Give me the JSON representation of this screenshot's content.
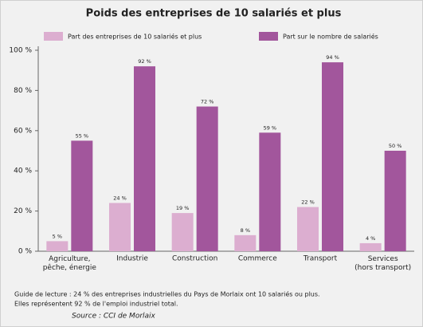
{
  "chart_data": {
    "type": "bar",
    "title": "Poids des entreprises de 10 salariés et plus",
    "categories": [
      "Agriculture,\npêche, énergie",
      "Industrie",
      "Construction",
      "Commerce",
      "Transport",
      "Services\n(hors transport)"
    ],
    "series": [
      {
        "name": "Part des entreprises de 10 salariés et plus",
        "color": "#dcaed0",
        "values": [
          5,
          24,
          19,
          8,
          22,
          4
        ],
        "value_labels": [
          "5 %",
          "24 %",
          "19 %",
          "8 %",
          "22 %",
          "4 %"
        ]
      },
      {
        "name": "Part sur le nombre de salariés",
        "color": "#a2569c",
        "values": [
          55,
          92,
          72,
          59,
          94,
          50
        ],
        "value_labels": [
          "55 %",
          "92 %",
          "72 %",
          "59 %",
          "94 %",
          "50 %"
        ]
      }
    ],
    "ylim": [
      0,
      100
    ],
    "yticks": [
      {
        "value": 0,
        "label": "0 %"
      },
      {
        "value": 20,
        "label": "20 %"
      },
      {
        "value": 40,
        "label": "40 %"
      },
      {
        "value": 60,
        "label": "60 %"
      },
      {
        "value": 80,
        "label": "80 %"
      },
      {
        "value": 100,
        "label": "100 %"
      }
    ],
    "grid": false,
    "annotations": [
      "Guide de lecture : 24 % des entreprises industrielles du Pays de Morlaix ont 10 salariés ou plus.",
      "Elles représentent 92 % de l'emploi industriel total."
    ],
    "source": "Source : CCI de Morlaix"
  }
}
